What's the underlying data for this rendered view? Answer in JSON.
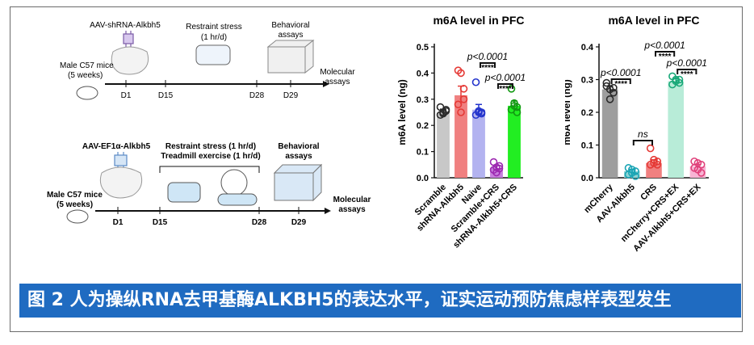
{
  "timeline1": {
    "injection": "AAV-shRNA-Alkbh5",
    "stress_line1": "Restraint stress",
    "stress_line2": "(1 hr/d)",
    "behavior_line1": "Behavioral",
    "behavior_line2": "assays",
    "mice_line1": "Male C57 mice",
    "mice_line2": "(5 weeks)",
    "molecular_line1": "Molecular",
    "molecular_line2": "assays",
    "days": [
      "D1",
      "D15",
      "D28",
      "D29"
    ]
  },
  "timeline2": {
    "injection": "AAV-EF1α-Alkbh5",
    "stress_line1": "Restraint stress (1 hr/d)",
    "stress_line2": "Treadmill exercise (1 hr/d)",
    "behavior_line1": "Behavioral",
    "behavior_line2": "assays",
    "mice_line1": "Male C57 mice",
    "mice_line2": "(5 weeks)",
    "molecular_line1": "Molecular",
    "molecular_line2": "assays",
    "days": [
      "D1",
      "D15",
      "D28",
      "D29"
    ]
  },
  "caption": "图 2 人为操纵RNA去甲基酶ALKBH5的表达水平，证实运动预防焦虑样表型发生",
  "chart_data": [
    {
      "type": "bar",
      "title": "m6A level in PFC",
      "ylabel": "m6A level (ng)",
      "ylim": [
        0,
        0.5
      ],
      "yticks": [
        "0.0",
        "0.1",
        "0.2",
        "0.3",
        "0.4",
        "0.5"
      ],
      "categories": [
        "Scramble",
        "shRNA-Alkbh5",
        "Naive",
        "Scramble+CRS",
        "shRNA-Alkbh5+CRS"
      ],
      "values": [
        0.25,
        0.315,
        0.26,
        0.038,
        0.275
      ],
      "errors": [
        0.012,
        0.035,
        0.02,
        0.008,
        0.018
      ],
      "colors": [
        "#c8c8c8",
        "#f08080",
        "#b3b3f0",
        "#c77ddd",
        "#22ee22"
      ],
      "point_colors": [
        "#2a2a2a",
        "#e53935",
        "#2233cc",
        "#9c27b0",
        "#119911"
      ],
      "points": [
        [
          0.24,
          0.25,
          0.26,
          0.27,
          0.245,
          0.255
        ],
        [
          0.41,
          0.4,
          0.34,
          0.28,
          0.25,
          0.3
        ],
        [
          0.365,
          0.25,
          0.245,
          0.24,
          0.255,
          0.25
        ],
        [
          0.06,
          0.04,
          0.035,
          0.03,
          0.02,
          0.045
        ],
        [
          0.34,
          0.285,
          0.27,
          0.26,
          0.275,
          0.25
        ]
      ],
      "annotations": [
        {
          "p": "p<0.0001",
          "stars": "****",
          "between": [
            2,
            3
          ]
        },
        {
          "p": "p<0.0001",
          "stars": "****",
          "between": [
            3,
            4
          ]
        }
      ]
    },
    {
      "type": "bar",
      "title": "m6A level in PFC",
      "ylabel": "m6A level (ng)",
      "ylim": [
        0,
        0.4
      ],
      "yticks": [
        "0.0",
        "0.1",
        "0.2",
        "0.3",
        "0.4"
      ],
      "categories": [
        "mCherry",
        "AAV-Alkbh5",
        "CRS",
        "mCherry+CRS+EX",
        "AAV-Alkbh5+CRS+EX"
      ],
      "values": [
        0.27,
        0.02,
        0.045,
        0.295,
        0.035
      ],
      "errors": [
        0.01,
        0.006,
        0.01,
        0.008,
        0.006
      ],
      "colors": [
        "#9e9e9e",
        "#8fd4d4",
        "#f08080",
        "#b8ecd8",
        "#f8b4d4"
      ],
      "point_colors": [
        "#2a2a2a",
        "#1ba5b5",
        "#e53935",
        "#18a878",
        "#e0407a"
      ],
      "points": [
        [
          0.29,
          0.27,
          0.26,
          0.28,
          0.24,
          0.275
        ],
        [
          0.03,
          0.025,
          0.02,
          0.01,
          0.015,
          0.005
        ],
        [
          0.09,
          0.055,
          0.05,
          0.04,
          0.045,
          0.04
        ],
        [
          0.31,
          0.3,
          0.29,
          0.285,
          0.295,
          0.3
        ],
        [
          0.05,
          0.045,
          0.04,
          0.03,
          0.025,
          0.015
        ]
      ],
      "annotations": [
        {
          "p": "p<0.0001",
          "stars": "****",
          "between": [
            0,
            1
          ]
        },
        {
          "p": "ns",
          "stars": "",
          "between": [
            1,
            2
          ]
        },
        {
          "p": "p<0.0001",
          "stars": "****",
          "between": [
            2,
            3
          ]
        },
        {
          "p": "p<0.0001",
          "stars": "****",
          "between": [
            3,
            4
          ]
        }
      ]
    }
  ]
}
